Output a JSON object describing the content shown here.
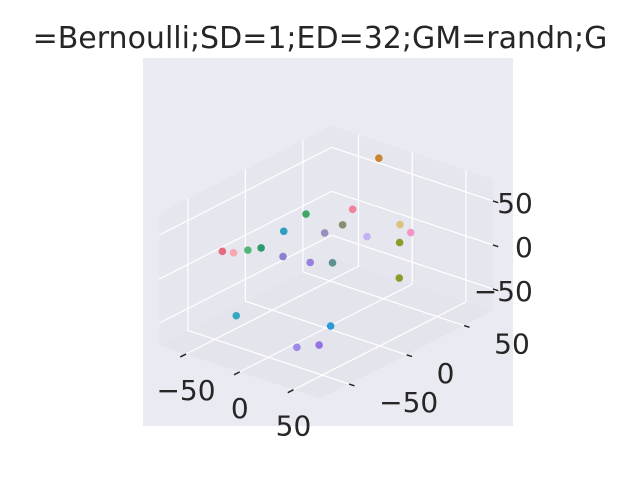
{
  "chart_data": {
    "type": "scatter",
    "projection": "3d",
    "title": "=Bernoulli;SD=1;ED=32;GM=randn;G",
    "xlabel": "",
    "ylabel": "",
    "zlabel": "",
    "grid": true,
    "background": "#EAEAF2",
    "pane_color": "#E6E6EE",
    "grid_color": "#FFFFFF",
    "text_color": "#262626",
    "x_ticks": [
      "−50",
      "0",
      "50"
    ],
    "y_ticks": [
      "−50",
      "0",
      "50"
    ],
    "z_ticks": [
      "50",
      "0",
      "−50"
    ],
    "points": [
      {
        "x": -15,
        "y": 60,
        "z": 72,
        "color": "#c8842f"
      },
      {
        "x": -40,
        "y": 20,
        "z": 25,
        "color": "#3da865"
      },
      {
        "x": -18,
        "y": 40,
        "z": 26,
        "color": "#f0829a"
      },
      {
        "x": -50,
        "y": 10,
        "z": 8,
        "color": "#2f9ec1"
      },
      {
        "x": -28,
        "y": 25,
        "z": 5,
        "color": "#9c8fc0"
      },
      {
        "x": -22,
        "y": 35,
        "z": 10,
        "color": "#878f72"
      },
      {
        "x": -10,
        "y": 45,
        "z": -5,
        "color": "#c3b2f0"
      },
      {
        "x": 10,
        "y": 55,
        "z": 10,
        "color": "#dcc084"
      },
      {
        "x": 20,
        "y": 55,
        "z": 5,
        "color": "#f495c8"
      },
      {
        "x": 15,
        "y": 50,
        "z": -5,
        "color": "#8b9c2a"
      },
      {
        "x": 20,
        "y": 45,
        "z": -40,
        "color": "#8b9c2a"
      },
      {
        "x": -75,
        "y": -20,
        "z": -5,
        "color": "#e56a82"
      },
      {
        "x": -70,
        "y": -15,
        "z": -8,
        "color": "#f7a6b2"
      },
      {
        "x": -62,
        "y": -10,
        "z": -5,
        "color": "#53b47c"
      },
      {
        "x": -55,
        "y": -5,
        "z": -3,
        "color": "#2e9c6a"
      },
      {
        "x": -40,
        "y": 0,
        "z": -10,
        "color": "#8b7fd0"
      },
      {
        "x": -20,
        "y": 5,
        "z": -12,
        "color": "#9980e0"
      },
      {
        "x": -10,
        "y": 15,
        "z": -15,
        "color": "#5e9090"
      },
      {
        "x": -30,
        "y": -50,
        "z": -40,
        "color": "#36a8c0"
      },
      {
        "x": 15,
        "y": -10,
        "z": -60,
        "color": "#2d9ad5"
      },
      {
        "x": 5,
        "y": -30,
        "z": -75,
        "color": "#9e88ec"
      },
      {
        "x": 15,
        "y": -20,
        "z": -75,
        "color": "#9571e6"
      }
    ]
  }
}
